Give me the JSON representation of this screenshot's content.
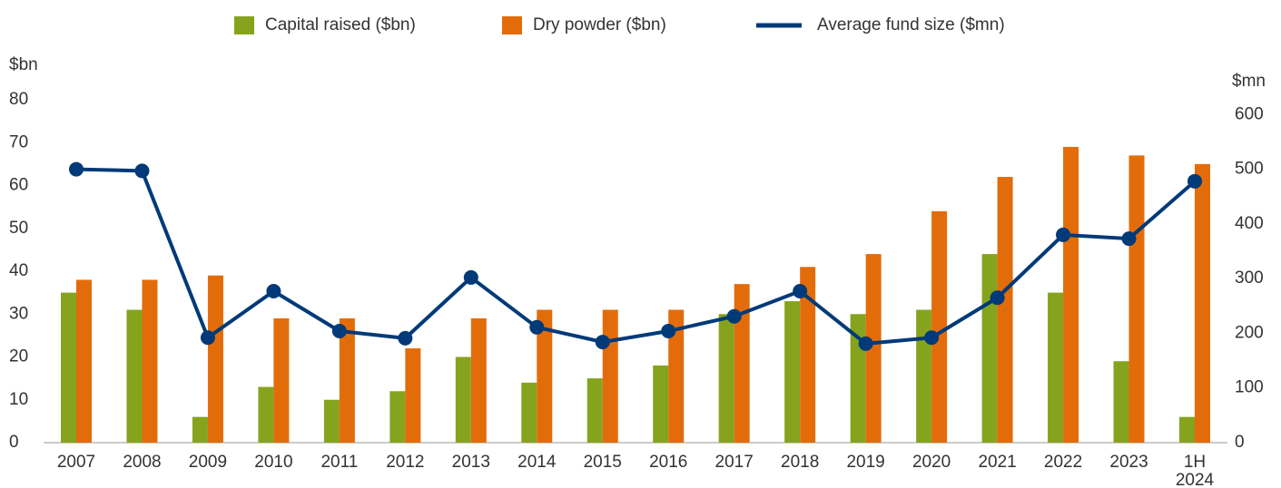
{
  "chart_data": {
    "type": "bar",
    "categories": [
      "2007",
      "2008",
      "2009",
      "2010",
      "2011",
      "2012",
      "2013",
      "2014",
      "2015",
      "2016",
      "2017",
      "2018",
      "2019",
      "2020",
      "2021",
      "2022",
      "2023",
      "1H 2024"
    ],
    "series": [
      {
        "name": "Capital raised ($bn)",
        "type": "bar",
        "color": "#86a31e",
        "values": [
          35,
          31,
          6,
          13,
          10,
          12,
          20,
          14,
          15,
          18,
          30,
          33,
          30,
          31,
          44,
          35,
          19,
          6
        ]
      },
      {
        "name": "Dry powder ($bn)",
        "type": "bar",
        "color": "#e36c0a",
        "values": [
          38,
          38,
          39,
          29,
          29,
          22,
          29,
          31,
          31,
          31,
          37,
          41,
          44,
          54,
          62,
          69,
          67,
          65
        ]
      },
      {
        "name": "Average fund size ($mn)",
        "type": "line",
        "axis": "y2",
        "color": "#003a78",
        "values": [
          500,
          497,
          192,
          277,
          204,
          191,
          302,
          211,
          184,
          204,
          231,
          277,
          181,
          192,
          265,
          380,
          373,
          478
        ]
      }
    ],
    "y_label": "$bn",
    "y2_label": "$mn",
    "ylim": [
      0,
      80
    ],
    "yticks": [
      0,
      10,
      20,
      30,
      40,
      50,
      60,
      70,
      80
    ],
    "y2lim": [
      0,
      627
    ],
    "y2ticks": [
      0,
      100,
      200,
      300,
      400,
      500,
      600
    ],
    "legend": "top"
  }
}
